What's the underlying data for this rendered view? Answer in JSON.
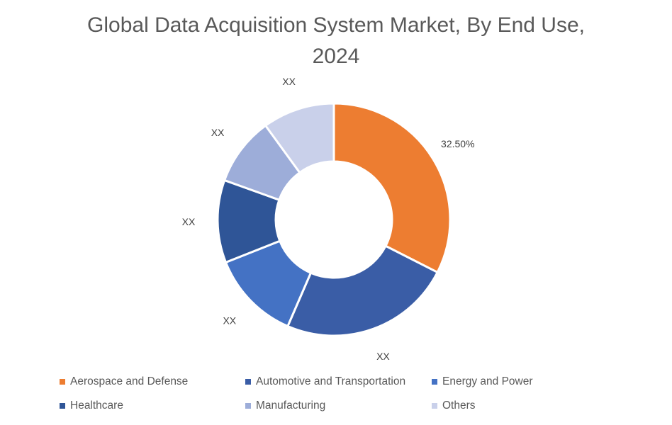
{
  "chart_data": {
    "type": "pie",
    "title_lines": [
      "Global Data Acquisition System Market, By End Use,",
      "2024"
    ],
    "donut": true,
    "legend_position": "bottom",
    "categories": [
      "Aerospace and Defense",
      "Automotive and Transportation",
      "Energy and Power",
      "Healthcare",
      "Manufacturing",
      "Others"
    ],
    "values": [
      32.5,
      24.0,
      12.5,
      11.5,
      9.5,
      10.0
    ],
    "data_labels": [
      "32.50%",
      "XX",
      "XX",
      "XX",
      "XX",
      "XX"
    ],
    "colors": [
      "#ED7D31",
      "#3A5DA6",
      "#4472C4",
      "#2F5597",
      "#9DADD9",
      "#C9D0EA"
    ]
  }
}
